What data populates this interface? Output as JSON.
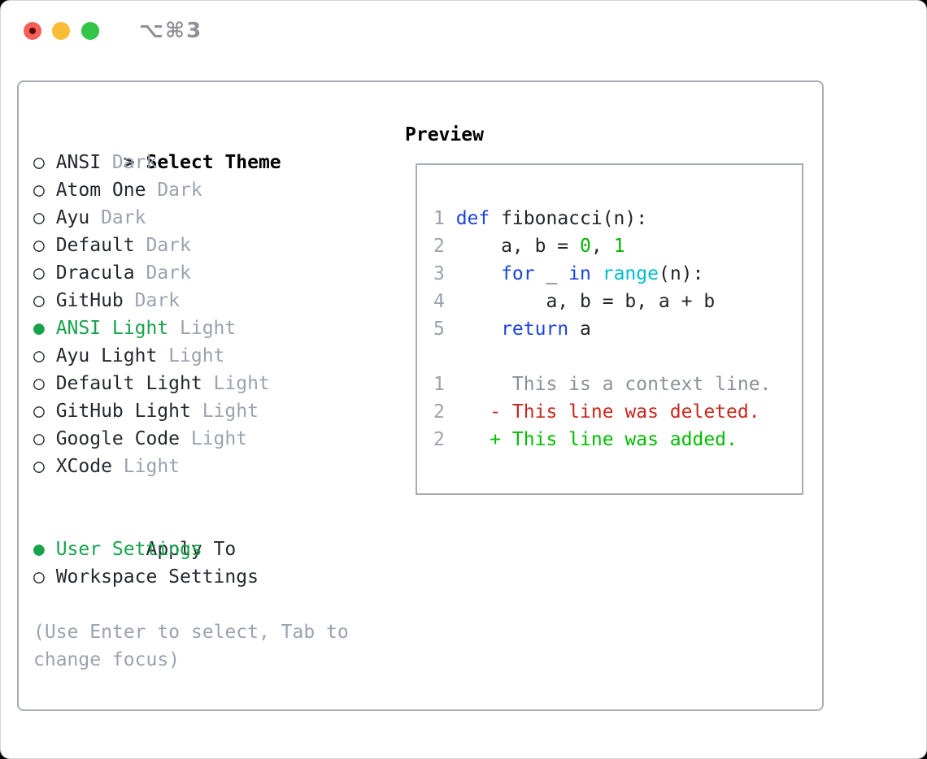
{
  "titlebar": {
    "title": "⌥⌘3"
  },
  "glyphs": {
    "cursor": ">",
    "radio_unselected": "○",
    "radio_selected": "●"
  },
  "theme_list": {
    "header": "Select Theme",
    "items": [
      {
        "name": "ANSI",
        "variant": "Dark",
        "selected": false
      },
      {
        "name": "Atom One",
        "variant": "Dark",
        "selected": false
      },
      {
        "name": "Ayu",
        "variant": "Dark",
        "selected": false
      },
      {
        "name": "Default",
        "variant": "Dark",
        "selected": false
      },
      {
        "name": "Dracula",
        "variant": "Dark",
        "selected": false
      },
      {
        "name": "GitHub",
        "variant": "Dark",
        "selected": false
      },
      {
        "name": "ANSI Light",
        "variant": "Light",
        "selected": true
      },
      {
        "name": "Ayu Light",
        "variant": "Light",
        "selected": false
      },
      {
        "name": "Default Light",
        "variant": "Light",
        "selected": false
      },
      {
        "name": "GitHub Light",
        "variant": "Light",
        "selected": false
      },
      {
        "name": "Google Code",
        "variant": "Light",
        "selected": false
      },
      {
        "name": "XCode",
        "variant": "Light",
        "selected": false
      }
    ]
  },
  "apply_to": {
    "header": "Apply To",
    "options": [
      {
        "name": "User Settings",
        "selected": true
      },
      {
        "name": "Workspace Settings",
        "selected": false
      }
    ]
  },
  "help_text": "(Use Enter to select, Tab to change focus)",
  "preview": {
    "header": "Preview",
    "code_lines": [
      {
        "num": "1",
        "segments": [
          [
            "def",
            "kw"
          ],
          [
            " fibonacci(n):",
            "plain"
          ]
        ]
      },
      {
        "num": "2",
        "segments": [
          [
            "    a, b = ",
            "plain"
          ],
          [
            "0",
            "numlit"
          ],
          [
            ", ",
            "plain"
          ],
          [
            "1",
            "numlit"
          ]
        ]
      },
      {
        "num": "3",
        "segments": [
          [
            "    ",
            "plain"
          ],
          [
            "for",
            "kw"
          ],
          [
            " _ ",
            "plain"
          ],
          [
            "in",
            "kw"
          ],
          [
            " ",
            "plain"
          ],
          [
            "range",
            "builtin"
          ],
          [
            "(n):",
            "plain"
          ]
        ]
      },
      {
        "num": "4",
        "segments": [
          [
            "        a, b = b, a + b",
            "plain"
          ]
        ]
      },
      {
        "num": "5",
        "segments": [
          [
            "    ",
            "plain"
          ],
          [
            "return",
            "kw"
          ],
          [
            " a",
            "plain"
          ]
        ]
      }
    ],
    "diff_lines": [
      {
        "num": "1",
        "segments": [
          [
            "     This is a context line.",
            "ctx"
          ]
        ]
      },
      {
        "num": "2",
        "segments": [
          [
            "   - This line was deleted.",
            "del"
          ]
        ]
      },
      {
        "num": "2",
        "segments": [
          [
            "   + This line was added.",
            "add"
          ]
        ]
      }
    ]
  },
  "colors": {
    "frame": "#a7aeb8",
    "text": "#24292f",
    "code_text": "#22262b",
    "muted": "#9aa3ae",
    "ctx_gray": "#8a9199",
    "selected_green": "#17a34a",
    "keyword_blue": "#1b44db",
    "builtin_cyan": "#00bfca",
    "number_literal_green": "#00b700",
    "diff_added_green": "#00bd00",
    "diff_deleted_red": "#c7281c",
    "title_gray": "#8f9196",
    "traffic_red": "#f4605a",
    "traffic_red_dot": "#5c0a04",
    "traffic_yellow": "#f8bc35",
    "traffic_green": "#32c546"
  }
}
